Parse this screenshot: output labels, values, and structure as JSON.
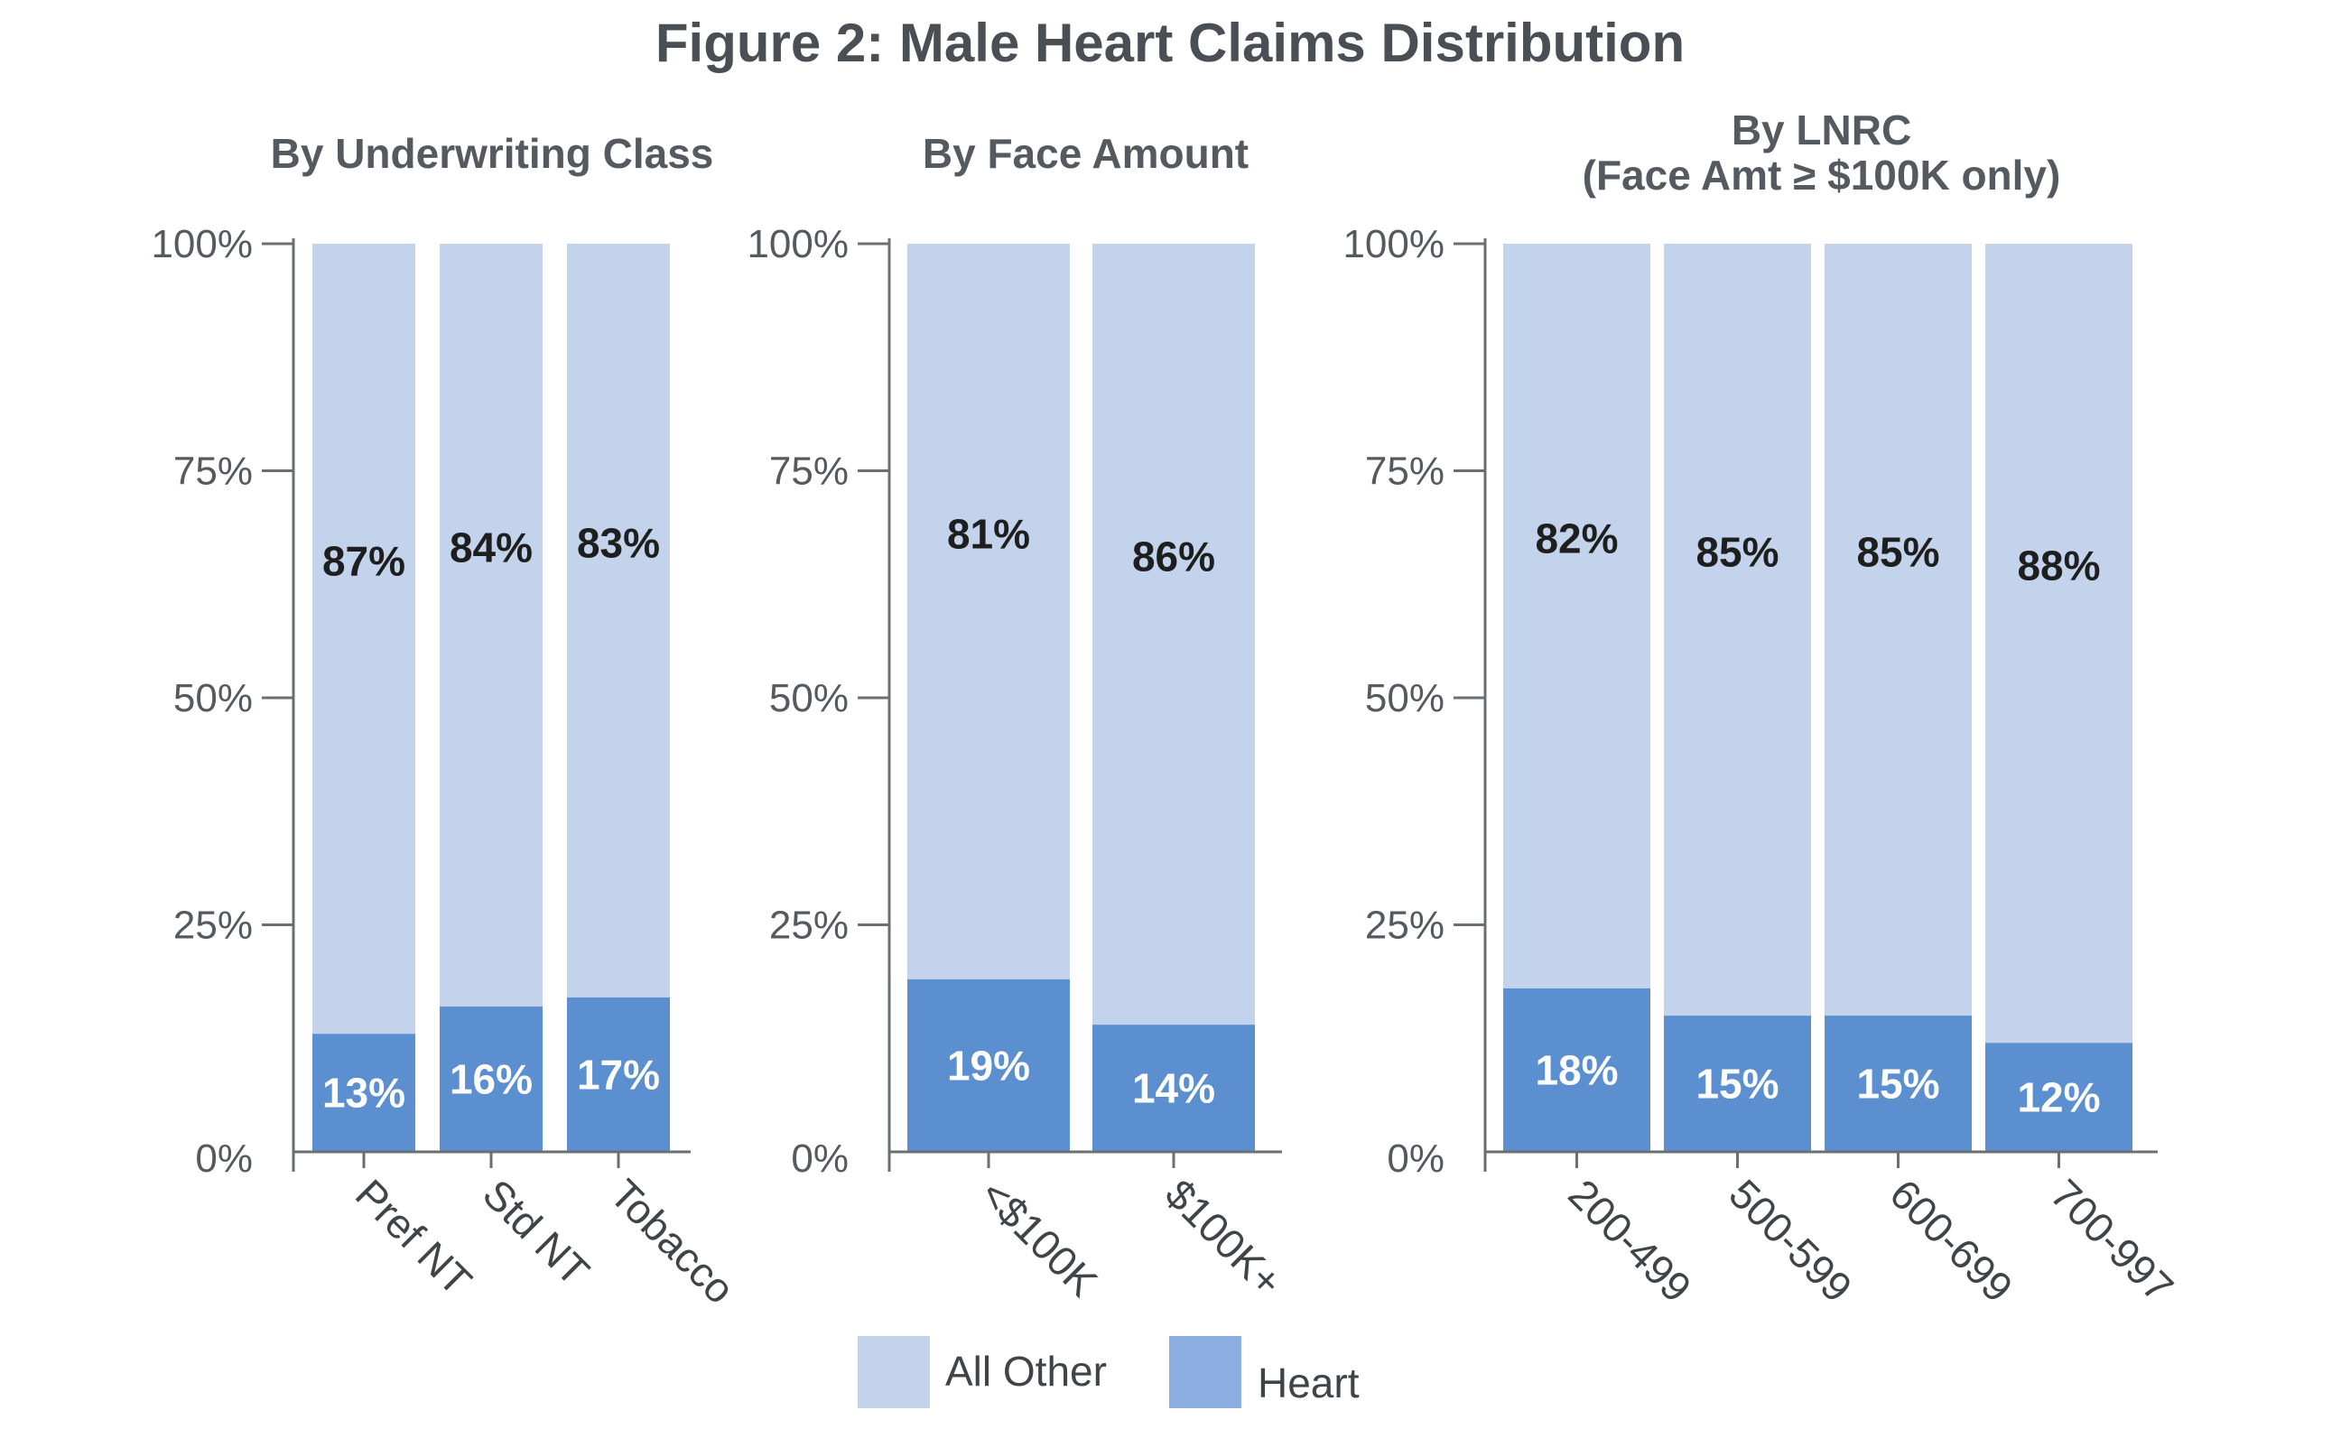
{
  "title": "Figure 2:  Male Heart Claims Distribution",
  "chart_data": [
    {
      "type": "bar",
      "stacked": true,
      "title": "By Underwriting Class",
      "categories": [
        "Pref NT",
        "Std NT",
        "Tobacco"
      ],
      "series": [
        {
          "name": "Heart",
          "values": [
            13,
            16,
            17
          ]
        },
        {
          "name": "All Other",
          "values": [
            87,
            84,
            83
          ]
        }
      ],
      "yticks": [
        "0%",
        "25%",
        "50%",
        "75%",
        "100%"
      ],
      "ylim": [
        0,
        100
      ]
    },
    {
      "type": "bar",
      "stacked": true,
      "title": "By Face Amount",
      "categories": [
        "<$100K",
        "$100K+"
      ],
      "series": [
        {
          "name": "Heart",
          "values": [
            19,
            14
          ]
        },
        {
          "name": "All Other",
          "values": [
            81,
            86
          ]
        }
      ],
      "yticks": [
        "0%",
        "25%",
        "50%",
        "75%",
        "100%"
      ],
      "ylim": [
        0,
        100
      ]
    },
    {
      "type": "bar",
      "stacked": true,
      "title": "By LNRC",
      "subtitle": "(Face Amt ≥ $100K only)",
      "categories": [
        "200-499",
        "500-599",
        "600-699",
        "700-997"
      ],
      "series": [
        {
          "name": "Heart",
          "values": [
            18,
            15,
            15,
            12
          ]
        },
        {
          "name": "All Other",
          "values": [
            82,
            85,
            85,
            88
          ]
        }
      ],
      "yticks": [
        "0%",
        "25%",
        "50%",
        "75%",
        "100%"
      ],
      "ylim": [
        0,
        100
      ]
    }
  ],
  "legend": [
    {
      "name": "All Other",
      "color": "#c3d3ec"
    },
    {
      "name": "Heart",
      "color": "#8daee0"
    }
  ],
  "colors": {
    "heart": "#5b8fd0",
    "all_other": "#c3d3ec",
    "axis": "#6b6f73",
    "label_dark": "#1e1e1e",
    "label_light": "#ffffff"
  }
}
